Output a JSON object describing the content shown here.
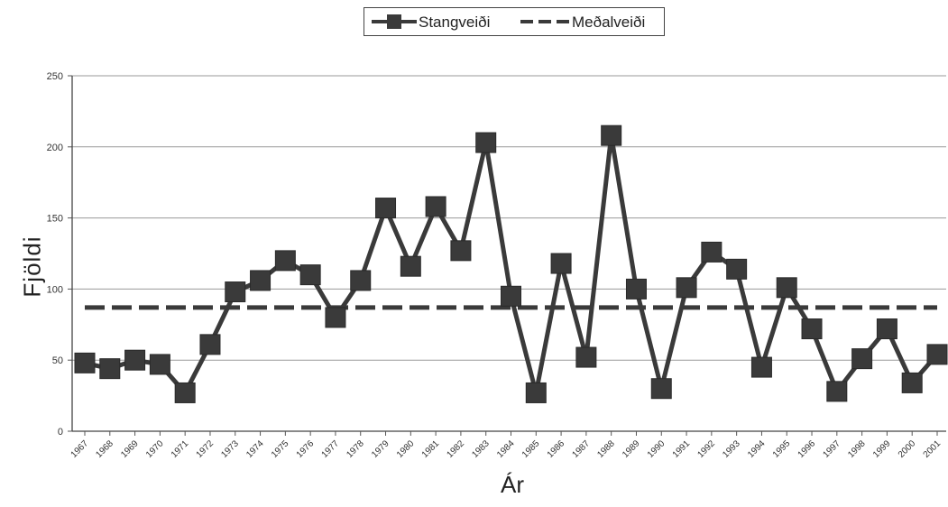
{
  "chart_data": {
    "type": "line",
    "xlabel": "Ár",
    "ylabel": "Fjöldi",
    "ylim": [
      0,
      250
    ],
    "yticks": [
      0,
      50,
      100,
      150,
      200,
      250
    ],
    "grid": true,
    "legend_position": "top-center",
    "categories": [
      "1967",
      "1968",
      "1969",
      "1970",
      "1971",
      "1972",
      "1973",
      "1974",
      "1975",
      "1976",
      "1977",
      "1978",
      "1979",
      "1980",
      "1981",
      "1982",
      "1983",
      "1984",
      "1985",
      "1986",
      "1987",
      "1988",
      "1989",
      "1990",
      "1991",
      "1992",
      "1993",
      "1994",
      "1995",
      "1996",
      "1997",
      "1998",
      "1999",
      "2000",
      "2001"
    ],
    "series": [
      {
        "name": "Stangveiði",
        "style": "solid-square-markers",
        "color": "#3a3a3a",
        "values": [
          48,
          44,
          50,
          47,
          27,
          61,
          98,
          106,
          120,
          110,
          80,
          106,
          157,
          116,
          158,
          127,
          203,
          95,
          27,
          118,
          52,
          208,
          100,
          30,
          101,
          126,
          114,
          45,
          101,
          72,
          28,
          51,
          72,
          34,
          54
        ]
      },
      {
        "name": "Meðalveiði",
        "style": "dashed",
        "color": "#3a3a3a",
        "values": [
          87,
          87,
          87,
          87,
          87,
          87,
          87,
          87,
          87,
          87,
          87,
          87,
          87,
          87,
          87,
          87,
          87,
          87,
          87,
          87,
          87,
          87,
          87,
          87,
          87,
          87,
          87,
          87,
          87,
          87,
          87,
          87,
          87,
          87,
          87
        ]
      }
    ]
  }
}
